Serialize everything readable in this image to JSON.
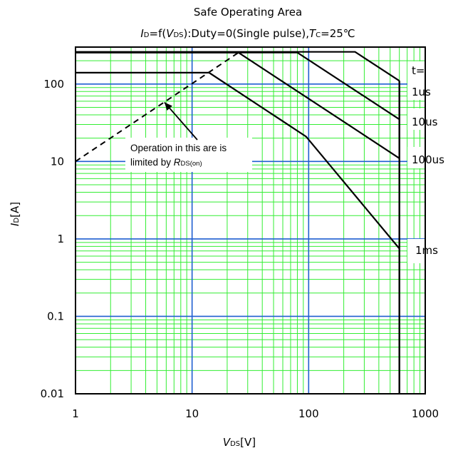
{
  "chart_data": {
    "type": "line",
    "x_scale": "log",
    "y_scale": "log",
    "xlim": [
      1,
      1000
    ],
    "ylim": [
      0.01,
      300
    ],
    "x_ticks": [
      "1",
      "10",
      "100",
      "1000"
    ],
    "y_ticks": [
      "0.01",
      "0.1",
      "1",
      "10",
      "100"
    ],
    "title": "Safe Operating Area",
    "subtitle": {
      "p1": "I",
      "p2": "D",
      "p3": "=f(",
      "p4": "V",
      "p5": "DS",
      "p6": "):Duty=0(Single pulse),",
      "p7": "T",
      "p8": "C",
      "p9": "=25℃"
    },
    "xlabel": {
      "main": "V",
      "sub": "DS",
      "unit": "[V]"
    },
    "ylabel": {
      "main": "I",
      "sub": "D",
      "unit": "[A]"
    },
    "grid": true,
    "colors": {
      "minor_grid": "#33ee33",
      "major_grid": "#1f5fd0",
      "curves": "#000000"
    },
    "legend_header": "t=",
    "series": [
      {
        "name": "1us",
        "x": [
          1,
          250,
          600
        ],
        "y": [
          260,
          260,
          110
        ]
      },
      {
        "name": "10us",
        "x": [
          1,
          80,
          600
        ],
        "y": [
          255,
          255,
          35
        ]
      },
      {
        "name": "100us",
        "x": [
          1,
          25,
          600
        ],
        "y": [
          255,
          255,
          11
        ]
      },
      {
        "name": "1ms",
        "x": [
          1,
          14,
          95,
          600
        ],
        "y": [
          140,
          140,
          21,
          0.75
        ]
      }
    ],
    "rds_limit": {
      "x": [
        1,
        25
      ],
      "y": [
        10,
        255
      ],
      "style": "dashed"
    },
    "drain_voltage_limit": {
      "x": [
        600,
        600
      ],
      "y": [
        0.01,
        110
      ]
    },
    "annotation": {
      "line1": "Operation in this are is",
      "line2_pre": "limited by ",
      "line2_R": "R",
      "line2_sub": "DS(on)",
      "arrow_target": {
        "x": 5.8,
        "y": 58
      }
    }
  }
}
